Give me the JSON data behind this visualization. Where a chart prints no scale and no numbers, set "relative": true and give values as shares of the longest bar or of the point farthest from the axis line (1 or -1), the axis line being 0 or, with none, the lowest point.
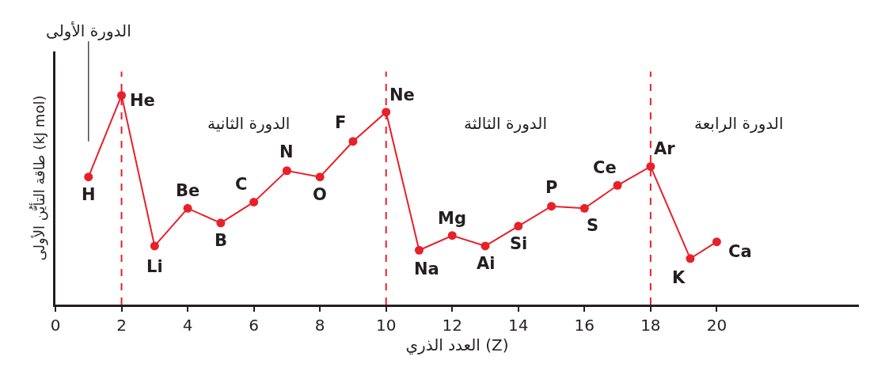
{
  "chart_data": {
    "type": "line",
    "relative": true,
    "x": [
      1,
      2,
      3,
      4,
      5,
      6,
      7,
      8,
      9,
      10,
      11,
      12,
      13,
      14,
      15,
      16,
      17,
      18,
      19.2,
      20
    ],
    "series": [
      {
        "color": "#e8202a",
        "values": [
          0.61,
          1,
          0.28,
          0.46,
          0.39,
          0.49,
          0.64,
          0.61,
          0.78,
          0.92,
          0.26,
          0.33,
          0.28,
          0.375,
          0.47,
          0.46,
          0.57,
          0.66,
          0.22,
          0.3
        ]
      }
    ],
    "xlim": [
      0,
      24.3
    ],
    "xticks": [
      0,
      2,
      4,
      6,
      8,
      10,
      12,
      14,
      16,
      18,
      20
    ],
    "xlabel": "العدد الذري (Z)",
    "ylabel": "طاقة التأيُّن الأولى (kJ mol)",
    "annotations": [
      "الدورة الأولى",
      "الدورة الثانية",
      "الدورة الثالثة",
      "الدورة الرابعة",
      {
        "text": "H",
        "x": 1,
        "y": 0.61
      },
      {
        "text": "He",
        "x": 2,
        "y": 1
      },
      {
        "text": "Li",
        "x": 3,
        "y": 0.28
      },
      {
        "text": "Be",
        "x": 4,
        "y": 0.46
      },
      {
        "text": "B",
        "x": 5,
        "y": 0.39
      },
      {
        "text": "C",
        "x": 6,
        "y": 0.49
      },
      {
        "text": "N",
        "x": 7,
        "y": 0.64
      },
      {
        "text": "O",
        "x": 8,
        "y": 0.61
      },
      {
        "text": "F",
        "x": 9,
        "y": 0.78
      },
      {
        "text": "Ne",
        "x": 10,
        "y": 0.92
      },
      {
        "text": "Na",
        "x": 11,
        "y": 0.26
      },
      {
        "text": "Mg",
        "x": 12,
        "y": 0.33
      },
      {
        "text": "Ai",
        "x": 13,
        "y": 0.28
      },
      {
        "text": "Si",
        "x": 14,
        "y": 0.375
      },
      {
        "text": "P",
        "x": 15,
        "y": 0.47
      },
      {
        "text": "S",
        "x": 16,
        "y": 0.46
      },
      {
        "text": "Ce",
        "x": 17,
        "y": 0.57
      },
      {
        "text": "Ar",
        "x": 18,
        "y": 0.66
      },
      {
        "text": "K",
        "x": 19.2,
        "y": 0.22
      },
      {
        "text": "Ca",
        "x": 20,
        "y": 0.3
      }
    ],
    "ref_lines": [
      {
        "axis": "x",
        "value": 2,
        "color": "#e8202a",
        "line_style": "dashed"
      },
      {
        "axis": "x",
        "value": 10,
        "color": "#e8202a",
        "line_style": "dashed"
      },
      {
        "axis": "x",
        "value": 18,
        "color": "#e8202a",
        "line_style": "dashed"
      }
    ],
    "marker": "circle",
    "line_style": "solid",
    "grid": false,
    "tick_labels": "x"
  }
}
